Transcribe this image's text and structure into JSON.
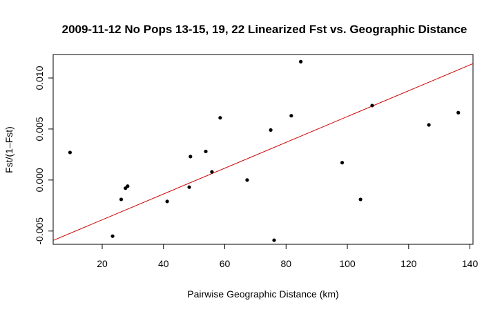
{
  "chart_data": {
    "type": "scatter",
    "title": "2009-11-12 No Pops 13-15, 19, 22 Linearized Fst vs. Geographic Distance",
    "xlabel": "Pairwise Geographic Distance (km)",
    "ylabel": "Fst/(1–Fst)",
    "xlim": [
      4,
      141
    ],
    "ylim": [
      -0.0063,
      0.0123
    ],
    "x_ticks": [
      20,
      40,
      60,
      80,
      100,
      120,
      140
    ],
    "x_tick_labels": [
      "20",
      "40",
      "60",
      "80",
      "100",
      "120",
      "140"
    ],
    "y_ticks": [
      -0.005,
      0.0,
      0.005,
      0.01
    ],
    "y_tick_labels": [
      "-0.005",
      "0.000",
      "0.005",
      "0.010"
    ],
    "grid": false,
    "points": [
      {
        "x": 9.5,
        "y": 0.0027
      },
      {
        "x": 23.4,
        "y": -0.0055
      },
      {
        "x": 26.2,
        "y": -0.0019
      },
      {
        "x": 27.6,
        "y": -0.0008
      },
      {
        "x": 28.3,
        "y": -0.0006
      },
      {
        "x": 41.2,
        "y": -0.0021
      },
      {
        "x": 48.4,
        "y": -0.0007
      },
      {
        "x": 48.8,
        "y": 0.0023
      },
      {
        "x": 53.8,
        "y": 0.0028
      },
      {
        "x": 55.8,
        "y": 0.0008
      },
      {
        "x": 58.5,
        "y": 0.0061
      },
      {
        "x": 67.3,
        "y": 0.0
      },
      {
        "x": 75.0,
        "y": 0.0049
      },
      {
        "x": 76.1,
        "y": -0.0059
      },
      {
        "x": 81.7,
        "y": 0.0063
      },
      {
        "x": 84.8,
        "y": 0.0116
      },
      {
        "x": 98.3,
        "y": 0.0017
      },
      {
        "x": 104.3,
        "y": -0.0019
      },
      {
        "x": 108.1,
        "y": 0.0073
      },
      {
        "x": 126.6,
        "y": 0.0054
      },
      {
        "x": 136.2,
        "y": 0.0066
      }
    ],
    "regression_line": {
      "intercept": -0.00643,
      "slope": 0.0001265
    },
    "point_color": "#000000",
    "line_color": "#cc0000"
  }
}
